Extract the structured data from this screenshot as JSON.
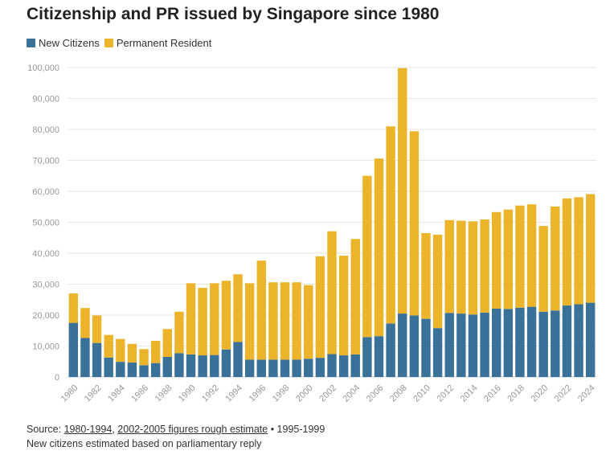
{
  "title": "Citizenship and PR issued by Singapore since 1980",
  "colors": {
    "citizens": "#3a7199",
    "pr": "#ebb42a",
    "grid": "#e6e6e6",
    "tick": "#999999"
  },
  "chart_data": {
    "type": "bar",
    "stacked": true,
    "title": "Citizenship and PR issued by Singapore since 1980",
    "xlabel": "",
    "ylabel": "",
    "ylim": [
      0,
      100000
    ],
    "y_ticks": [
      0,
      10000,
      20000,
      30000,
      40000,
      50000,
      60000,
      70000,
      80000,
      90000,
      100000
    ],
    "y_tick_labels": [
      "0",
      "10,000",
      "20,000",
      "30,000",
      "40,000",
      "50,000",
      "60,000",
      "70,000",
      "80,000",
      "90,000",
      "100,000"
    ],
    "grid": true,
    "legend_position": "top-left",
    "categories": [
      "1980",
      "1981",
      "1982",
      "1983",
      "1984",
      "1985",
      "1986",
      "1987",
      "1988",
      "1989",
      "1990",
      "1991",
      "1992",
      "1993",
      "1994",
      "1995",
      "1996",
      "1997",
      "1998",
      "1999",
      "2000",
      "2001",
      "2002",
      "2003",
      "2004",
      "2005",
      "2006",
      "2007",
      "2008",
      "2009",
      "2010",
      "2011",
      "2012",
      "2013",
      "2014",
      "2015",
      "2016",
      "2017",
      "2018",
      "2019",
      "2020",
      "2021",
      "2022",
      "2023",
      "2024"
    ],
    "x_tick_labels": [
      "1980",
      "1982",
      "1984",
      "1986",
      "1988",
      "1990",
      "1992",
      "1994",
      "1996",
      "1998",
      "2000",
      "2002",
      "2004",
      "2006",
      "2008",
      "2010",
      "2012",
      "2014",
      "2016",
      "2018",
      "2020",
      "2022",
      "2024"
    ],
    "series": [
      {
        "name": "New Citizens",
        "values": [
          17500,
          12600,
          11000,
          6300,
          4900,
          4700,
          3800,
          4500,
          6500,
          7700,
          7300,
          7000,
          7100,
          8900,
          11300,
          5600,
          5600,
          5600,
          5600,
          5600,
          5900,
          6200,
          7400,
          7000,
          7300,
          12900,
          13200,
          17300,
          20500,
          19900,
          18800,
          15800,
          20700,
          20500,
          20200,
          20800,
          22100,
          22000,
          22400,
          22700,
          21100,
          21500,
          23100,
          23500,
          24000
        ]
      },
      {
        "name": "Permanent Resident",
        "values": [
          9500,
          9700,
          8900,
          7300,
          7400,
          6000,
          5200,
          7200,
          9000,
          13400,
          23000,
          21800,
          23200,
          22200,
          21900,
          24700,
          32000,
          25000,
          25000,
          25000,
          23800,
          32800,
          39700,
          32200,
          37300,
          52100,
          57400,
          63700,
          79300,
          59500,
          27700,
          30200,
          30000,
          30000,
          30100,
          30100,
          31200,
          32100,
          33000,
          33100,
          27700,
          33600,
          34600,
          34600,
          35100
        ]
      }
    ]
  },
  "source": {
    "prefix": "Source: ",
    "link1": "1980-1994",
    "sep": ", ",
    "link2": "2002-2005 figures rough estimate",
    "suffix": " • 1995-1999",
    "note": "New citizens estimated based on parliamentary reply"
  }
}
